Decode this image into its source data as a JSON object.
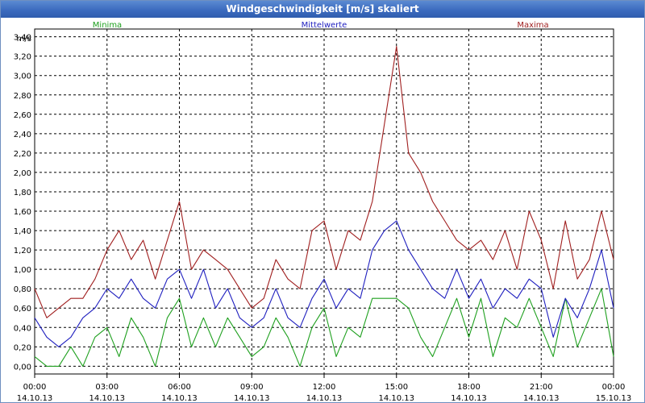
{
  "window": {
    "title": "Windgeschwindigkeit [m/s] skaliert"
  },
  "chart_data": {
    "type": "line",
    "ylabel": "m/s",
    "ylim": [
      -0.08,
      3.48
    ],
    "xlim": [
      0,
      24
    ],
    "yticks": [
      "0,00",
      "0,20",
      "0,40",
      "0,60",
      "0,80",
      "1,00",
      "1,20",
      "1,40",
      "1,60",
      "1,80",
      "2,00",
      "2,20",
      "2,40",
      "2,60",
      "2,80",
      "3,00",
      "3,20",
      "3,40"
    ],
    "xticks": [
      {
        "time": "00:00",
        "date": "14.10.13"
      },
      {
        "time": "03:00",
        "date": "14.10.13"
      },
      {
        "time": "06:00",
        "date": "14.10.13"
      },
      {
        "time": "09:00",
        "date": "14.10.13"
      },
      {
        "time": "12:00",
        "date": "14.10.13"
      },
      {
        "time": "15:00",
        "date": "14.10.13"
      },
      {
        "time": "18:00",
        "date": "14.10.13"
      },
      {
        "time": "21:00",
        "date": "14.10.13"
      },
      {
        "time": "00:00",
        "date": "15.10.13"
      }
    ],
    "grid": true,
    "legend_position": "top",
    "x_hours": [
      0,
      0.5,
      1,
      1.5,
      2,
      2.5,
      3,
      3.5,
      4,
      4.5,
      5,
      5.5,
      6,
      6.5,
      7,
      7.5,
      8,
      8.5,
      9,
      9.5,
      10,
      10.5,
      11,
      11.5,
      12,
      12.5,
      13,
      13.5,
      14,
      14.5,
      15,
      15.5,
      16,
      16.5,
      17,
      17.5,
      18,
      18.5,
      19,
      19.5,
      20,
      20.5,
      21,
      21.5,
      22,
      22.5,
      23,
      23.5,
      24
    ],
    "series": [
      {
        "name": "Minima",
        "color": "#1fa01f",
        "values": [
          0.1,
          0,
          0,
          0.2,
          0,
          0.3,
          0.4,
          0.1,
          0.5,
          0.3,
          0,
          0.5,
          0.7,
          0.2,
          0.5,
          0.2,
          0.5,
          0.3,
          0.1,
          0.2,
          0.5,
          0.3,
          0,
          0.4,
          0.6,
          0.1,
          0.4,
          0.3,
          0.7,
          0.7,
          0.7,
          0.6,
          0.3,
          0.1,
          0.4,
          0.7,
          0.3,
          0.7,
          0.1,
          0.5,
          0.4,
          0.7,
          0.4,
          0.1,
          0.7,
          0.2,
          0.5,
          0.8,
          0.1
        ]
      },
      {
        "name": "Mittelwerte",
        "color": "#1f1fbf",
        "values": [
          0.5,
          0.3,
          0.2,
          0.3,
          0.5,
          0.6,
          0.8,
          0.7,
          0.9,
          0.7,
          0.6,
          0.9,
          1.0,
          0.7,
          1.0,
          0.6,
          0.8,
          0.5,
          0.4,
          0.5,
          0.8,
          0.5,
          0.4,
          0.7,
          0.9,
          0.6,
          0.8,
          0.7,
          1.2,
          1.4,
          1.5,
          1.2,
          1.0,
          0.8,
          0.7,
          1.0,
          0.7,
          0.9,
          0.6,
          0.8,
          0.7,
          0.9,
          0.8,
          0.3,
          0.7,
          0.5,
          0.8,
          1.2,
          0.6
        ]
      },
      {
        "name": "Maxima",
        "color": "#a01f1f",
        "values": [
          0.8,
          0.5,
          0.6,
          0.7,
          0.7,
          0.9,
          1.2,
          1.4,
          1.1,
          1.3,
          0.9,
          1.3,
          1.7,
          1.0,
          1.2,
          1.1,
          1.0,
          0.8,
          0.6,
          0.7,
          1.1,
          0.9,
          0.8,
          1.4,
          1.5,
          1.0,
          1.4,
          1.3,
          1.7,
          2.5,
          3.3,
          2.2,
          2.0,
          1.7,
          1.5,
          1.3,
          1.2,
          1.3,
          1.1,
          1.4,
          1.0,
          1.6,
          1.3,
          0.8,
          1.5,
          0.9,
          1.1,
          1.6,
          1.1
        ]
      }
    ]
  }
}
